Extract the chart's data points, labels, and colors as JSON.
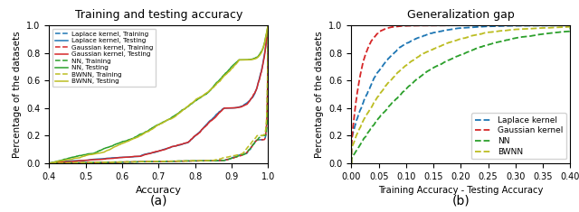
{
  "title_a": "Training and testing accuracy",
  "title_b": "Generalization gap",
  "xlabel_a": "Accuracy",
  "xlabel_b": "Training Accuracy - Testing Accuracy",
  "ylabel": "Percentage of the datasets",
  "xlim_a": [
    0.4,
    1.0
  ],
  "ylim_a": [
    0.0,
    1.0
  ],
  "xlim_b": [
    0.0,
    0.4
  ],
  "ylim_b": [
    0.0,
    1.0
  ],
  "label_a": "(a)",
  "label_b": "(b)",
  "colors": {
    "blue": "#1f77b4",
    "red": "#d62728",
    "green": "#2ca02c",
    "olive": "#bcbd22"
  },
  "legend_a": [
    "Laplace kernel, Training",
    "Laplace kernel, Testing",
    "Gaussian kernel, Training",
    "Gaussian kernel, Testing",
    "NN, Training",
    "NN, Testing",
    "BWNN, Training",
    "BWNN, Testing"
  ],
  "legend_b": [
    "Laplace kernel",
    "Gaussian kernel",
    "NN",
    "BWNN"
  ]
}
